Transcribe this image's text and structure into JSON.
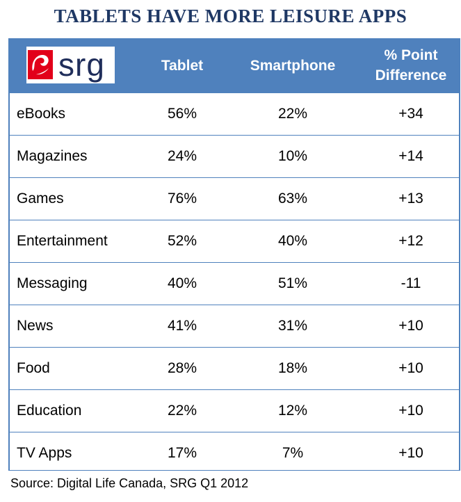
{
  "title": "TABLETS HAVE MORE LEISURE APPS",
  "logo": {
    "text": "srg",
    "icon": "srg-swoosh-logo",
    "accent": "#e2001a"
  },
  "colors": {
    "header_bg": "#4f81bd",
    "title": "#1f3864",
    "border": "#4f81bd"
  },
  "chart_data": {
    "type": "table",
    "title": "TABLETS HAVE MORE LEISURE APPS",
    "columns": [
      "Tablet",
      "Smartphone",
      "% Point Difference"
    ],
    "column_lines": [
      [
        "Tablet"
      ],
      [
        "Smartphone"
      ],
      [
        "% Point",
        "Difference"
      ]
    ],
    "rows": [
      {
        "category": "eBooks",
        "tablet": "56%",
        "smartphone": "22%",
        "difference": "+34"
      },
      {
        "category": "Magazines",
        "tablet": "24%",
        "smartphone": "10%",
        "difference": "+14"
      },
      {
        "category": "Games",
        "tablet": "76%",
        "smartphone": "63%",
        "difference": "+13"
      },
      {
        "category": "Entertainment",
        "tablet": "52%",
        "smartphone": "40%",
        "difference": "+12"
      },
      {
        "category": "Messaging",
        "tablet": "40%",
        "smartphone": "51%",
        "difference": "-11"
      },
      {
        "category": "News",
        "tablet": "41%",
        "smartphone": "31%",
        "difference": "+10"
      },
      {
        "category": "Food",
        "tablet": "28%",
        "smartphone": "18%",
        "difference": "+10"
      },
      {
        "category": "Education",
        "tablet": "22%",
        "smartphone": "12%",
        "difference": "+10"
      },
      {
        "category": "TV Apps",
        "tablet": "17%",
        "smartphone": "7%",
        "difference": "+10"
      }
    ]
  },
  "source": "Source: Digital Life Canada, SRG Q1 2012"
}
